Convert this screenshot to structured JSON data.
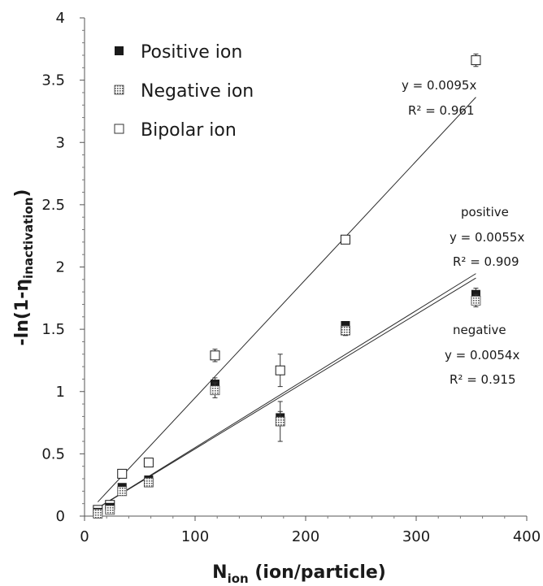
{
  "chart_data": {
    "type": "scatter",
    "xlabel": {
      "main": "N",
      "sub": "ion",
      "rest": " (ion/particle)"
    },
    "ylabel": {
      "main": "-ln(1-η",
      "sub": "inactivation",
      "rest": ")"
    },
    "xlim": [
      0,
      400
    ],
    "ylim": [
      0,
      4
    ],
    "x_ticks": [
      "0",
      "100",
      "200",
      "300",
      "400"
    ],
    "y_ticks": [
      "0",
      "0.5",
      "1",
      "1.5",
      "2",
      "2.5",
      "3",
      "3.5",
      "4"
    ],
    "grid": false,
    "legend_position": "top-left",
    "series": [
      {
        "name": "Positive ion",
        "marker": "filled-square",
        "color": "#1a1a1a",
        "points": [
          {
            "x": 12,
            "y": 0.03,
            "err": 0.01
          },
          {
            "x": 23,
            "y": 0.07,
            "err": 0.01
          },
          {
            "x": 34,
            "y": 0.23,
            "err": 0.02
          },
          {
            "x": 58,
            "y": 0.29,
            "err": 0.02
          },
          {
            "x": 118,
            "y": 1.06,
            "err": 0.05
          },
          {
            "x": 177,
            "y": 0.79,
            "err": 0.05
          },
          {
            "x": 236,
            "y": 1.53,
            "err": 0.03
          },
          {
            "x": 354,
            "y": 1.78,
            "err": 0.05
          }
        ],
        "fit": {
          "slope": 0.0055,
          "x_range": [
            12,
            354
          ]
        }
      },
      {
        "name": "Negative ion",
        "marker": "dotted-square",
        "color": "#777777",
        "points": [
          {
            "x": 12,
            "y": 0.02,
            "err": 0.01
          },
          {
            "x": 23,
            "y": 0.05,
            "err": 0.01
          },
          {
            "x": 34,
            "y": 0.2,
            "err": 0.02
          },
          {
            "x": 58,
            "y": 0.27,
            "err": 0.02
          },
          {
            "x": 118,
            "y": 1.01,
            "err": 0.06
          },
          {
            "x": 177,
            "y": 0.76,
            "err": 0.16
          },
          {
            "x": 236,
            "y": 1.49,
            "err": 0.04
          },
          {
            "x": 354,
            "y": 1.73,
            "err": 0.05
          }
        ],
        "fit": {
          "slope": 0.0054,
          "x_range": [
            12,
            354
          ]
        }
      },
      {
        "name": "Bipolar ion",
        "marker": "open-square",
        "color": "#1a1a1a",
        "points": [
          {
            "x": 12,
            "y": 0.05,
            "err": 0.01
          },
          {
            "x": 23,
            "y": 0.09,
            "err": 0.02
          },
          {
            "x": 34,
            "y": 0.34,
            "err": 0.02
          },
          {
            "x": 58,
            "y": 0.43,
            "err": 0.02
          },
          {
            "x": 118,
            "y": 1.29,
            "err": 0.05
          },
          {
            "x": 177,
            "y": 1.17,
            "err": 0.13
          },
          {
            "x": 236,
            "y": 2.22,
            "err": 0.03
          },
          {
            "x": 354,
            "y": 3.66,
            "err": 0.05
          }
        ],
        "fit": {
          "slope": 0.0095,
          "x_range": [
            12,
            354
          ]
        }
      }
    ],
    "annotations": {
      "bipolar_eq": "y = 0.0095x",
      "bipolar_r2": "R² = 0.961",
      "positive_label": "positive",
      "positive_eq": "y = 0.0055x",
      "positive_r2": "R² = 0.909",
      "negative_label": "negative",
      "negative_eq": "y = 0.0054x",
      "negative_r2": "R² = 0.915"
    }
  }
}
